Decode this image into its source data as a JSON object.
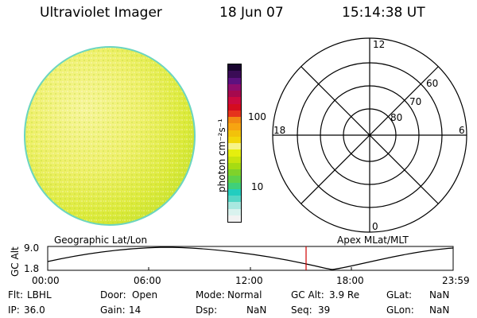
{
  "header": {
    "title": "Ultraviolet Imager",
    "date": "18 Jun 07",
    "time": "15:14:38 UT"
  },
  "colorbar": {
    "unit_label": "photon cm⁻²s⁻¹",
    "ticks": [
      "100",
      "10"
    ],
    "colors": [
      "#f2f2f2",
      "#d9f2ee",
      "#a9e8e0",
      "#55d6c6",
      "#22cdbf",
      "#3fd07a",
      "#5ed24a",
      "#7fd22a",
      "#a6dc12",
      "#c8e40e",
      "#e6ee0e",
      "#f7f488",
      "#f2d70a",
      "#f2c20a",
      "#f7a411",
      "#f28a13",
      "#e5331c",
      "#d40c1f",
      "#cc0a3f",
      "#a6094e",
      "#8e0d6d",
      "#5d117f",
      "#3a0c56",
      "#1a0630"
    ]
  },
  "polar": {
    "mlt_labels": [
      "12",
      "18",
      "6",
      "0"
    ],
    "lat_labels": [
      "60",
      "70",
      "80"
    ]
  },
  "geo_label": "Geographic Lat/Lon",
  "apex_label": "Apex MLat/MLT",
  "altplot": {
    "ylabel": "GC Alt",
    "y_ticks": [
      "9.0",
      "1.8"
    ],
    "x_ticks": [
      "00:00",
      "06:00",
      "12:00",
      "18:00",
      "23:59"
    ],
    "marker_color": "#d00000"
  },
  "status": {
    "row1": [
      {
        "label": "Flt:",
        "value": "LBHL"
      },
      {
        "label": "Door:",
        "value": "Open"
      },
      {
        "label": "Mode:",
        "value": "Normal"
      },
      {
        "label": "GC Alt:",
        "value": "3.9 Re"
      },
      {
        "label": "GLat:",
        "value": "NaN"
      }
    ],
    "row2": [
      {
        "label": "IP:",
        "value": "36.0"
      },
      {
        "label": "Gain:",
        "value": "14"
      },
      {
        "label": "Dsp:",
        "value": "NaN"
      },
      {
        "label": "Seq:",
        "value": "39"
      },
      {
        "label": "GLon:",
        "value": "NaN"
      }
    ]
  }
}
